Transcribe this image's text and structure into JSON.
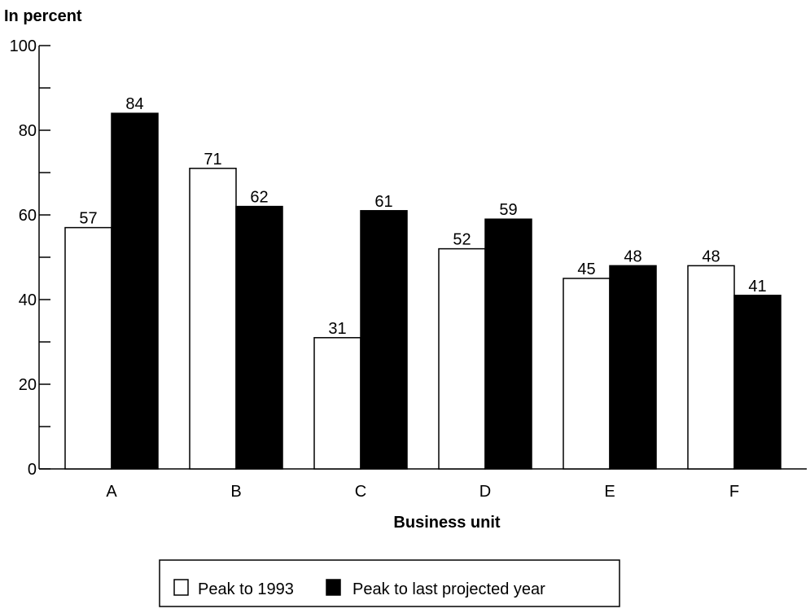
{
  "chart_data": {
    "type": "bar",
    "ylabel": "In percent",
    "xlabel": "Business unit",
    "categories": [
      "A",
      "B",
      "C",
      "D",
      "E",
      "F"
    ],
    "series": [
      {
        "name": "Peak to 1993",
        "values": [
          57,
          71,
          31,
          52,
          45,
          48
        ],
        "color": "#ffffff"
      },
      {
        "name": "Peak to last projected year",
        "values": [
          84,
          62,
          61,
          59,
          48,
          41
        ],
        "color": "#000000"
      }
    ],
    "yticks": [
      "0",
      "20",
      "40",
      "60",
      "80",
      "100"
    ],
    "ylim": [
      0,
      100
    ],
    "grid": false,
    "legend_position": "bottom"
  }
}
